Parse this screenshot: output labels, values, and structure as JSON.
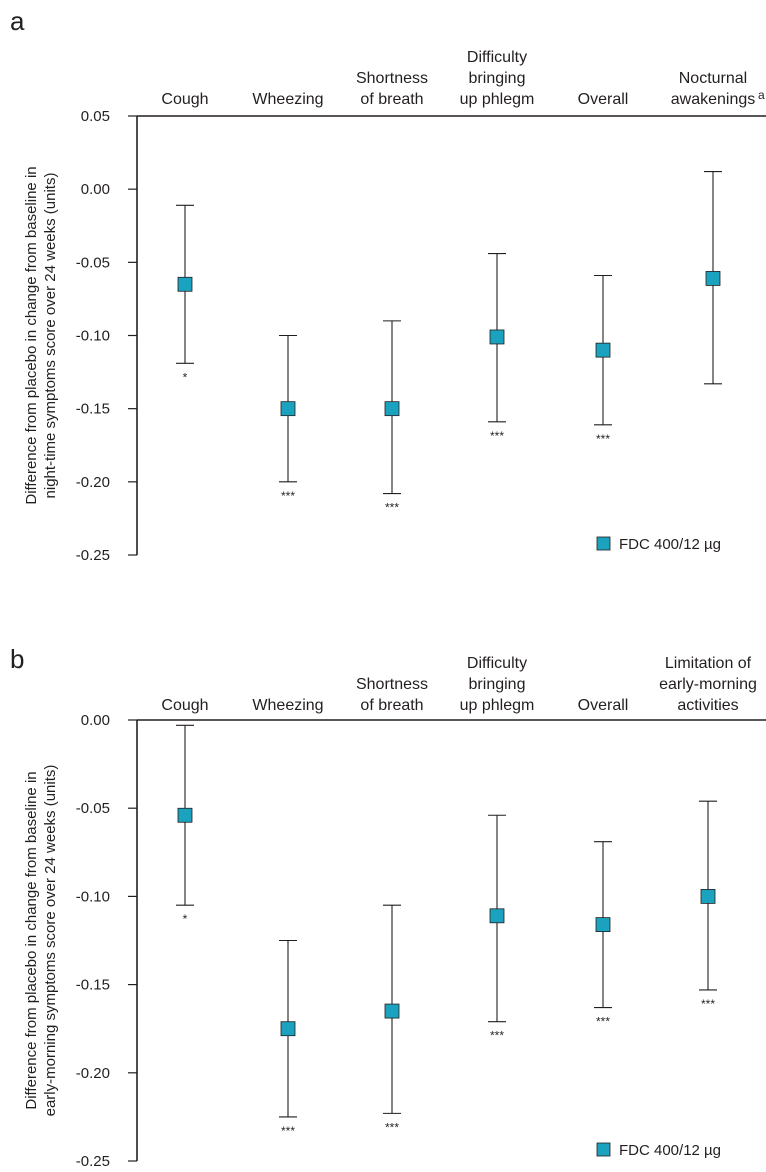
{
  "accent_color": "#1aa2bf",
  "chart_data": [
    {
      "panel": "a",
      "type": "scatter",
      "ylabel": [
        "Difference from placebo in change from baseline in",
        "night-time symptoms score over 24 weeks (units)"
      ],
      "ylim": [
        -0.25,
        0.05
      ],
      "yticks": [
        0.05,
        0.0,
        -0.05,
        -0.1,
        -0.15,
        -0.2,
        -0.25
      ],
      "ytick_labels": [
        "0.05",
        "0.00",
        "-0.05",
        "-0.10",
        "-0.15",
        "-0.20",
        "-0.25"
      ],
      "categories": [
        [
          "Cough"
        ],
        [
          "Wheezing"
        ],
        [
          "Shortness",
          "of breath"
        ],
        [
          "Difficulty",
          "bringing",
          "up phlegm"
        ],
        [
          "Overall"
        ],
        [
          "Nocturnal",
          "awakenings"
        ]
      ],
      "category_superscripts": [
        "",
        "",
        "",
        "",
        "",
        "a"
      ],
      "series": [
        {
          "name": "FDC 400/12 µg",
          "values": [
            -0.065,
            -0.15,
            -0.15,
            -0.101,
            -0.11,
            -0.061
          ],
          "ci_low": [
            -0.119,
            -0.2,
            -0.208,
            -0.159,
            -0.161,
            -0.133
          ],
          "ci_high": [
            -0.011,
            -0.1,
            -0.09,
            -0.044,
            -0.059,
            0.012
          ]
        }
      ],
      "significance": [
        "*",
        "***",
        "***",
        "***",
        "***",
        ""
      ],
      "legend": "FDC 400/12 µg",
      "legend_position": "bottom-right",
      "grid": false
    },
    {
      "panel": "b",
      "type": "scatter",
      "ylabel": [
        "Difference from placebo in change from baseline in",
        "early-morning symptoms score over 24 weeks (units)"
      ],
      "ylim": [
        -0.25,
        0.0
      ],
      "yticks": [
        0.0,
        -0.05,
        -0.1,
        -0.15,
        -0.2,
        -0.25
      ],
      "ytick_labels": [
        "0.00",
        "-0.05",
        "-0.10",
        "-0.15",
        "-0.20",
        "-0.25"
      ],
      "categories": [
        [
          "Cough"
        ],
        [
          "Wheezing"
        ],
        [
          "Shortness",
          "of breath"
        ],
        [
          "Difficulty",
          "bringing",
          "up phlegm"
        ],
        [
          "Overall"
        ],
        [
          "Limitation of",
          "early-morning",
          "activities"
        ]
      ],
      "category_superscripts": [
        "",
        "",
        "",
        "",
        "",
        ""
      ],
      "series": [
        {
          "name": "FDC 400/12 µg",
          "values": [
            -0.054,
            -0.175,
            -0.165,
            -0.111,
            -0.116,
            -0.1
          ],
          "ci_low": [
            -0.105,
            -0.225,
            -0.223,
            -0.171,
            -0.163,
            -0.153
          ],
          "ci_high": [
            -0.003,
            -0.125,
            -0.105,
            -0.054,
            -0.069,
            -0.046
          ]
        }
      ],
      "significance": [
        "*",
        "***",
        "***",
        "***",
        "***",
        "***"
      ],
      "legend": "FDC 400/12 µg",
      "legend_position": "bottom-right",
      "grid": false
    }
  ]
}
